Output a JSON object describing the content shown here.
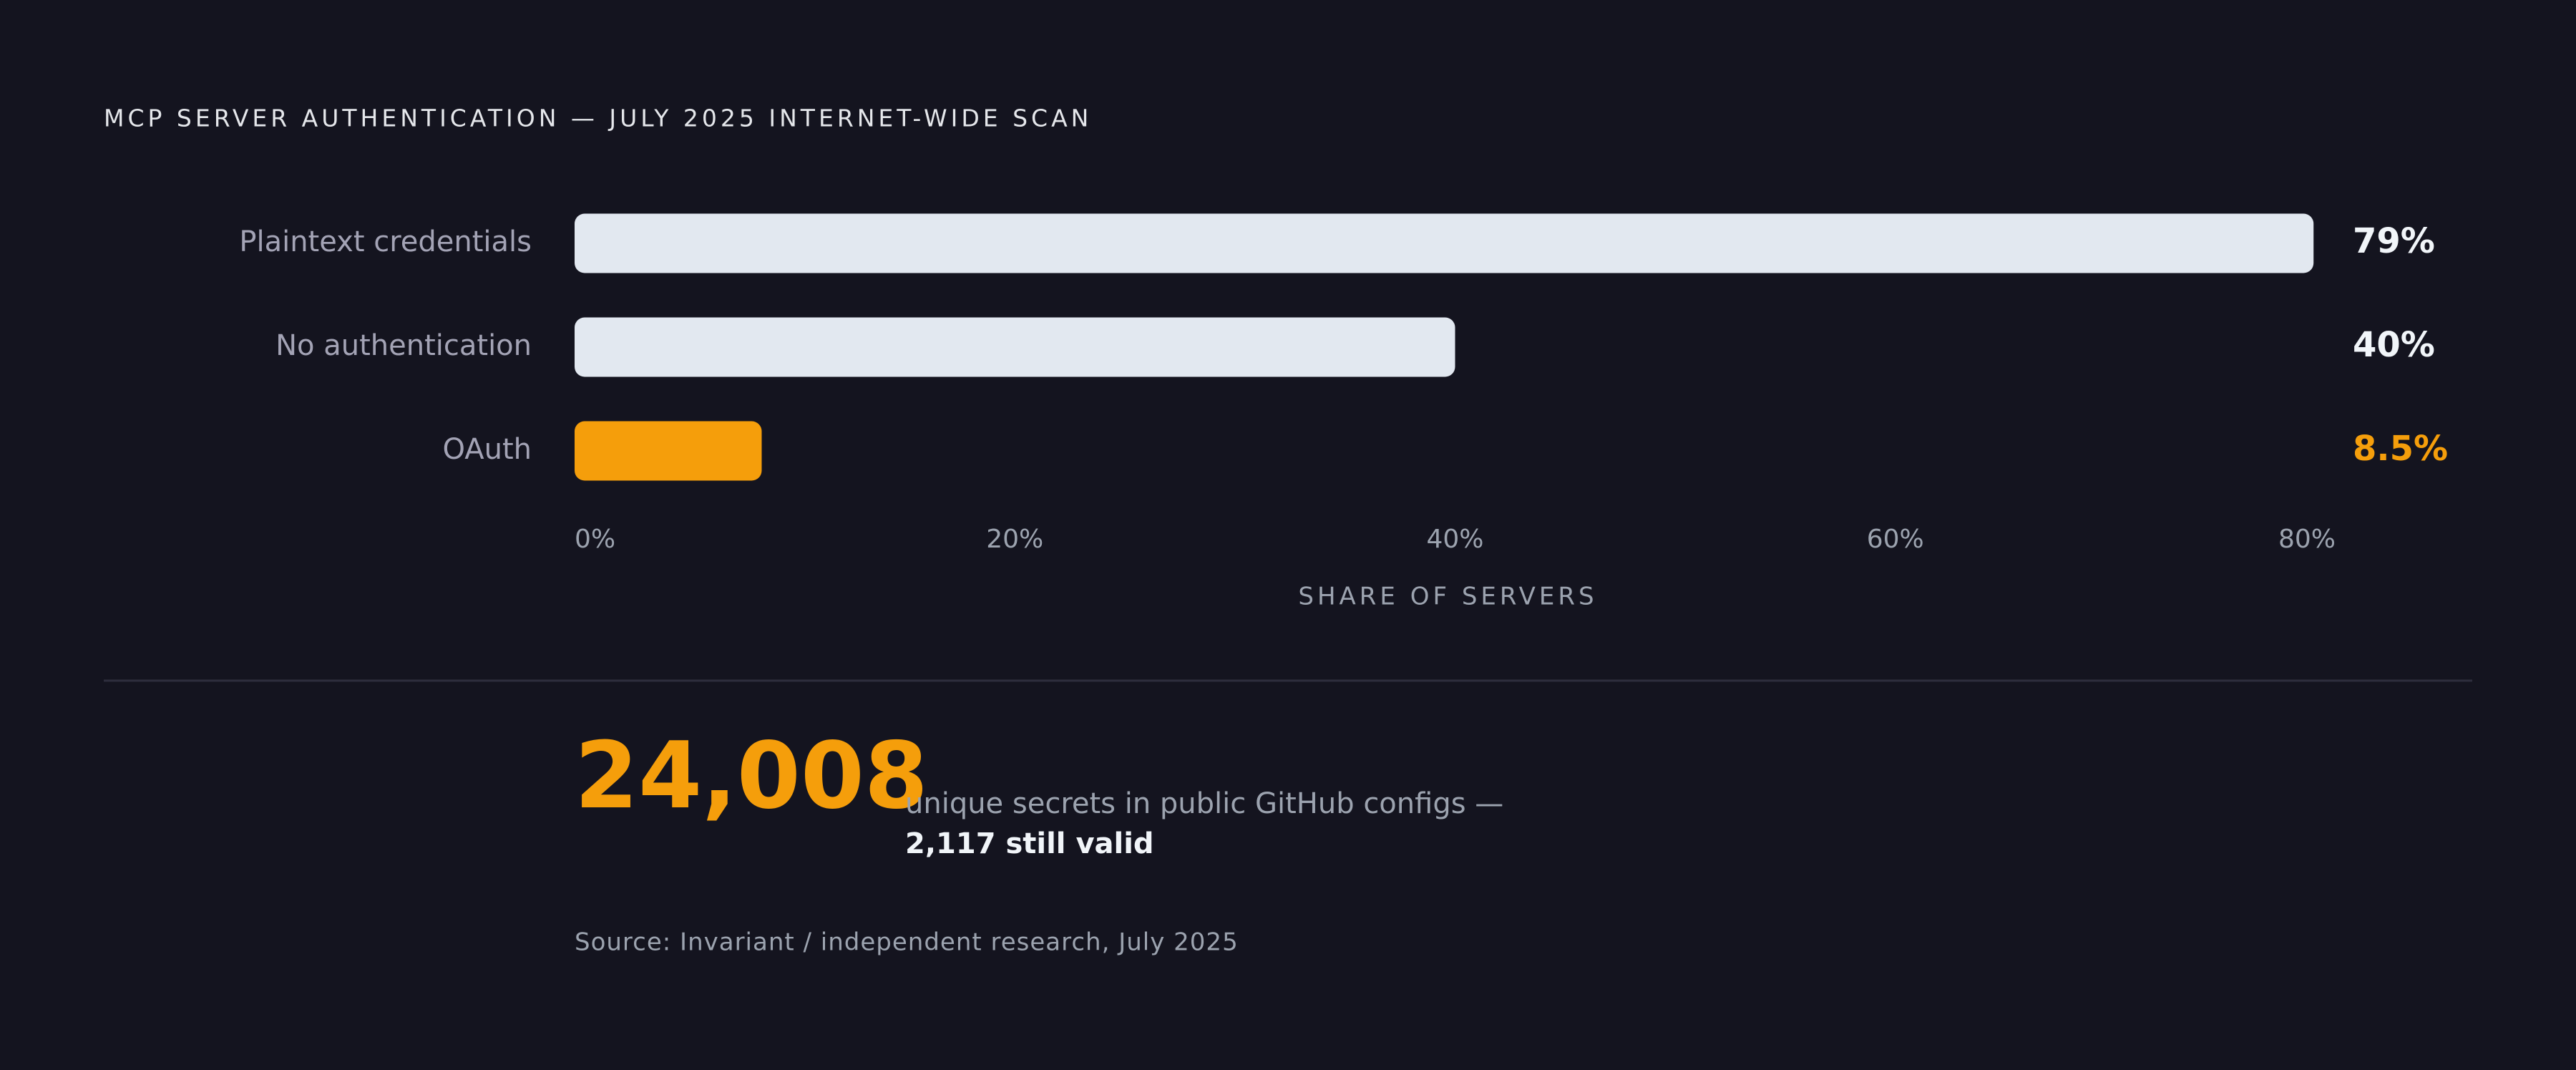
{
  "chart_data": {
    "type": "bar",
    "orientation": "horizontal",
    "title": "MCP SERVER AUTHENTICATION — JULY 2025 INTERNET-WIDE SCAN",
    "categories": [
      "Plaintext credentials",
      "No authentication",
      "OAuth"
    ],
    "values": [
      79,
      40,
      8.5
    ],
    "value_labels": [
      "79%",
      "40%",
      "8.5%"
    ],
    "colors": [
      "#e2e8f0",
      "#e2e8f0",
      "#f59e0b"
    ],
    "xlim": [
      0,
      80
    ],
    "xticks": [
      {
        "value": 0,
        "label": "0%"
      },
      {
        "value": 20,
        "label": "20%"
      },
      {
        "value": 40,
        "label": "40%"
      },
      {
        "value": 60,
        "label": "60%"
      },
      {
        "value": 80,
        "label": "80%"
      }
    ],
    "xlabel": "SHARE OF SERVERS"
  },
  "stat": {
    "value": "24,008",
    "text": "unique secrets in public GitHub configs —",
    "emphasis": "2,117 still valid"
  },
  "source": "Source: Invariant / independent research, July 2025"
}
